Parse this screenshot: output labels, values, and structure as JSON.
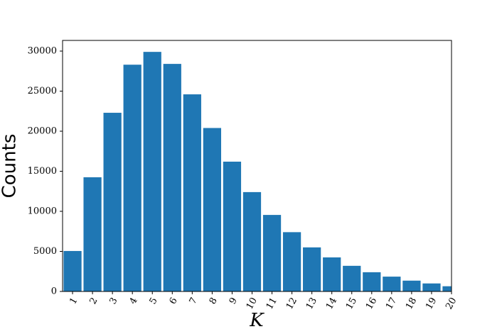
{
  "chart_data": {
    "type": "bar",
    "x": [
      1,
      2,
      3,
      4,
      5,
      6,
      7,
      8,
      9,
      10,
      11,
      12,
      13,
      14,
      15,
      16,
      17,
      18,
      19,
      20
    ],
    "values": [
      5050,
      14250,
      22300,
      28300,
      29900,
      28400,
      24600,
      20400,
      16200,
      12400,
      9550,
      7400,
      5500,
      4250,
      3200,
      2400,
      1850,
      1350,
      1000,
      650
    ],
    "color": "#1f77b4",
    "xlabel": "K",
    "ylabel": "Counts",
    "xlim": [
      0.5,
      20
    ],
    "xticks": [
      1,
      2,
      3,
      4,
      5,
      6,
      7,
      8,
      9,
      10,
      11,
      12,
      13,
      14,
      15,
      16,
      17,
      18,
      19,
      20
    ],
    "ylim": [
      0,
      31330
    ],
    "yticks": [
      0,
      5000,
      10000,
      15000,
      20000,
      25000,
      30000
    ]
  }
}
